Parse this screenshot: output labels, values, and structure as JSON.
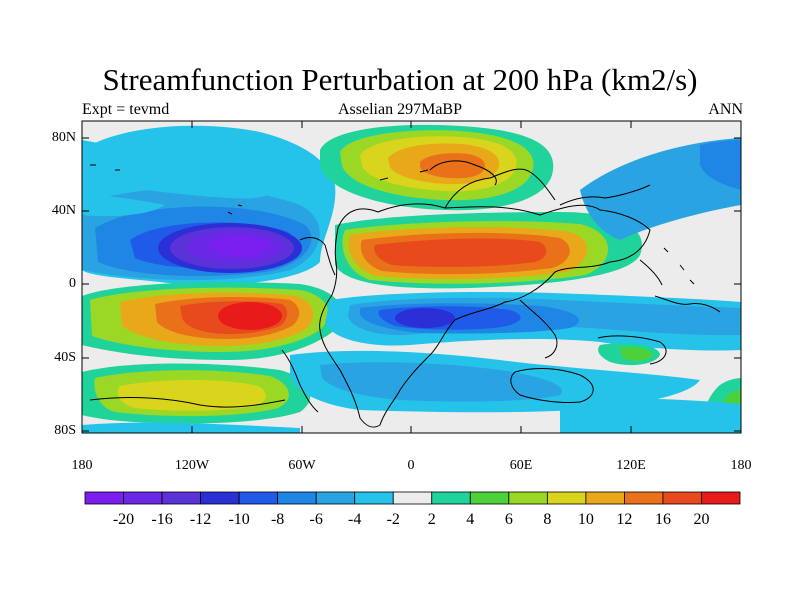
{
  "map": {
    "title": "Streamfunction Perturbation at 200 hPa (km2/s)",
    "left_string": "Expt = tevmd",
    "center_string": "Asselian 297MaBP",
    "right_string": "ANN",
    "lat_ticks": [
      "80N",
      "40N",
      "0",
      "40S",
      "80S"
    ],
    "lon_ticks": [
      "180",
      "120W",
      "60W",
      "0",
      "60E",
      "120E",
      "180"
    ],
    "colorbar": {
      "colors": [
        "#7a1ff0",
        "#6a28e6",
        "#5a32d8",
        "#2b2fd6",
        "#1f5be8",
        "#1f86e6",
        "#2aa3e2",
        "#25c3ea",
        "#ececec",
        "#20d39a",
        "#4cd13a",
        "#9bd826",
        "#d8d51c",
        "#e8a81a",
        "#e8711a",
        "#e84a1e",
        "#e81a1a"
      ],
      "labels": [
        "-20",
        "-16",
        "-12",
        "-10",
        "-8",
        "-6",
        "-4",
        "-2",
        "2",
        "4",
        "6",
        "8",
        "10",
        "12",
        "16",
        "20"
      ]
    }
  }
}
